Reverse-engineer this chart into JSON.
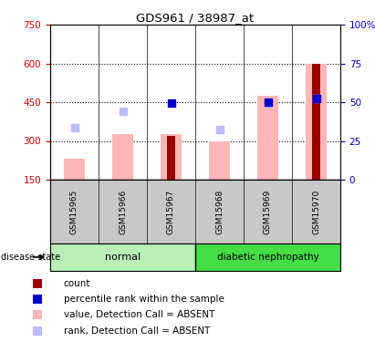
{
  "title": "GDS961 / 38987_at",
  "samples": [
    "GSM15965",
    "GSM15966",
    "GSM15967",
    "GSM15968",
    "GSM15969",
    "GSM15970"
  ],
  "pink_bar_values": [
    230,
    325,
    325,
    300,
    475,
    600
  ],
  "dark_red_bar_values": [
    null,
    null,
    320,
    null,
    null,
    600
  ],
  "light_blue_dot_values": [
    350,
    415,
    null,
    345,
    445,
    465
  ],
  "dark_blue_dot_values": [
    null,
    null,
    445,
    null,
    450,
    465
  ],
  "ylim_left": [
    150,
    750
  ],
  "ylim_right": [
    0,
    100
  ],
  "left_ticks": [
    150,
    300,
    450,
    600,
    750
  ],
  "right_ticks": [
    0,
    25,
    50,
    75,
    100
  ],
  "right_tick_labels": [
    "0",
    "25",
    "50",
    "75",
    "100%"
  ],
  "color_pink": "#ffb6b6",
  "color_dark_red": "#990000",
  "color_light_blue": "#bbbbff",
  "color_dark_blue": "#0000cc",
  "dot_size": 35,
  "grid_color": "black",
  "plot_bg": "white",
  "label_color_left": "#cc0000",
  "label_color_right": "#0000bb",
  "sample_area_color": "#c8c8c8",
  "normal_group_color": "#b8f0b8",
  "diabetic_group_color": "#44dd44",
  "legend_items": [
    {
      "color": "#990000",
      "label": "count"
    },
    {
      "color": "#0000cc",
      "label": "percentile rank within the sample"
    },
    {
      "color": "#ffb6b6",
      "label": "value, Detection Call = ABSENT"
    },
    {
      "color": "#bbbbff",
      "label": "rank, Detection Call = ABSENT"
    }
  ]
}
